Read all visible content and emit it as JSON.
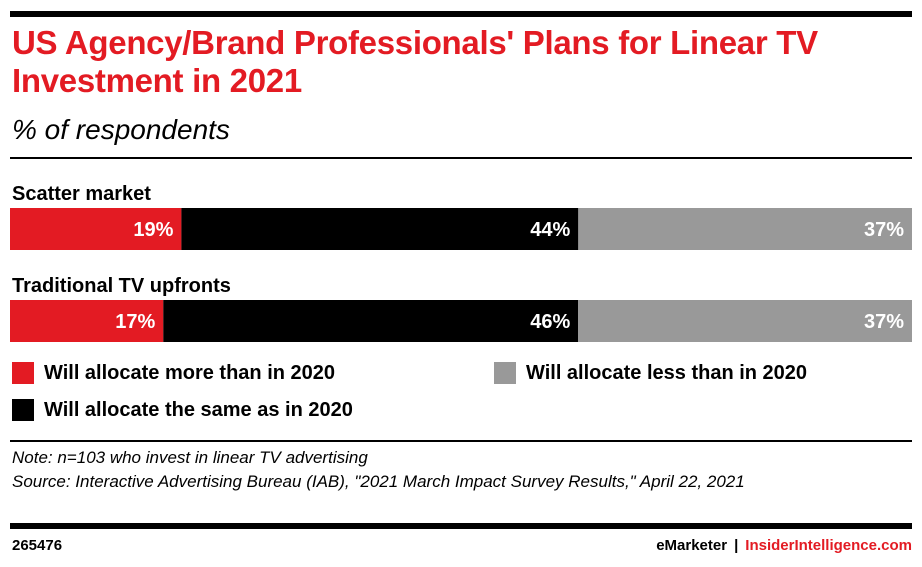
{
  "title": "US Agency/Brand Professionals' Plans for Linear TV Investment in 2021",
  "subtitle": "% of respondents",
  "colors": {
    "more": "#e31b23",
    "same": "#000000",
    "less": "#999999",
    "accent": "#e31b23"
  },
  "chart_data": {
    "type": "bar",
    "orientation": "horizontal",
    "stacked": true,
    "categories": [
      "Scatter market",
      "Traditional TV upfronts"
    ],
    "series": [
      {
        "name": "Will allocate more than in 2020",
        "values": [
          19,
          17
        ],
        "labels": [
          "19%",
          "17%"
        ],
        "color": "#e31b23"
      },
      {
        "name": "Will allocate the same as in 2020",
        "values": [
          44,
          46
        ],
        "labels": [
          "44%",
          "46%"
        ],
        "color": "#000000"
      },
      {
        "name": "Will allocate less than in 2020",
        "values": [
          37,
          37
        ],
        "labels": [
          "37%",
          "37%"
        ],
        "color": "#999999"
      }
    ],
    "xlim": [
      0,
      100
    ],
    "grid": false,
    "legend_placement": "bottom"
  },
  "legend": {
    "more": "Will allocate more than in 2020",
    "less": "Will allocate less than in 2020",
    "same": "Will allocate the same as in 2020"
  },
  "note": "Note: n=103 who invest in linear TV advertising",
  "source": "Source: Interactive Advertising Bureau (IAB), \"2021 March Impact Survey Results,\" April 22, 2021",
  "footer": {
    "id": "265476",
    "brand1": "eMarketer",
    "separator": "|",
    "brand2": "InsiderIntelligence.com"
  }
}
